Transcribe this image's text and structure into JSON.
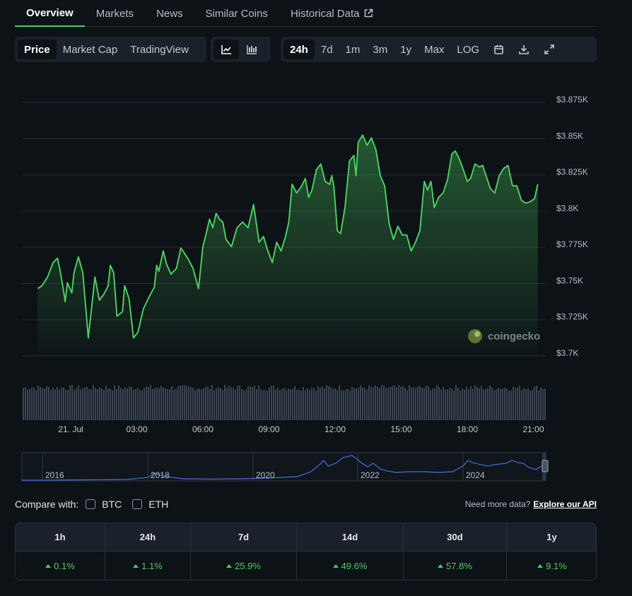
{
  "tabs": [
    {
      "label": "Overview",
      "active": true
    },
    {
      "label": "Markets"
    },
    {
      "label": "News"
    },
    {
      "label": "Similar Coins"
    },
    {
      "label": "Historical Data",
      "icon": "external-link-icon"
    }
  ],
  "toolbar": {
    "view": [
      "Price",
      "Market Cap",
      "TradingView"
    ],
    "view_active": "Price",
    "chart_types": [
      "line-chart-icon",
      "candlestick-icon"
    ],
    "ranges": [
      "24h",
      "7d",
      "1m",
      "3m",
      "1y",
      "Max",
      "LOG"
    ],
    "range_active": "24h",
    "actions": [
      "calendar-icon",
      "download-icon",
      "fullscreen-icon"
    ]
  },
  "colors": {
    "line": "#4bcc5f",
    "volume": "#3d4653",
    "navigator": "#3f63c9",
    "background": "#0d1217"
  },
  "watermark": "coingecko",
  "chart_data": {
    "type": "line",
    "x_ticks": [
      "21. Jul",
      "03:00",
      "06:00",
      "09:00",
      "12:00",
      "15:00",
      "18:00",
      "21:00"
    ],
    "y_ticks": [
      "$3.875K",
      "$3.85K",
      "$3.825K",
      "$3.8K",
      "$3.775K",
      "$3.75K",
      "$3.725K",
      "$3.7K"
    ],
    "ylim": [
      3700,
      3875
    ],
    "x_hours": [
      -1.5,
      -1.3,
      -1.05,
      -0.8,
      -0.6,
      -0.5,
      -0.35,
      -0.25,
      -0.15,
      0.05,
      0.15,
      0.35,
      0.55,
      0.8,
      1.0,
      1.1,
      1.3,
      1.5,
      1.7,
      1.8,
      1.95,
      2.1,
      2.35,
      2.45,
      2.65,
      2.85,
      3.05,
      3.3,
      3.55,
      3.8,
      3.9,
      4.0,
      4.2,
      4.35,
      4.55,
      4.8,
      5.0,
      5.1,
      5.35,
      5.55,
      5.8,
      6.0,
      6.15,
      6.3,
      6.45,
      6.6,
      6.75,
      6.9,
      7.05,
      7.3,
      7.55,
      7.8,
      8.05,
      8.3,
      8.55,
      8.75,
      8.95,
      9.15,
      9.35,
      9.55,
      9.75,
      9.9,
      10.05,
      10.25,
      10.45,
      10.65,
      10.8,
      10.95,
      11.15,
      11.35,
      11.55,
      11.75,
      11.85,
      11.95,
      12.1,
      12.25,
      12.45,
      12.65,
      12.85,
      12.95,
      13.05,
      13.25,
      13.45,
      13.65,
      13.85,
      14.05,
      14.25,
      14.45,
      14.65,
      14.85,
      15.05,
      15.25,
      15.45,
      15.65,
      15.85,
      16.05,
      16.2,
      16.35,
      16.5,
      16.7,
      16.9,
      17.1,
      17.3,
      17.45,
      17.6,
      17.8,
      18.0,
      18.15,
      18.35,
      18.55,
      18.7,
      18.85,
      19.05,
      19.25,
      19.45,
      19.65,
      19.85,
      20.05,
      20.25,
      20.45,
      20.65,
      20.85,
      21.05,
      21.2
    ],
    "y": [
      3744,
      3746,
      3752,
      3762,
      3765,
      3758,
      3745,
      3735,
      3748,
      3741,
      3755,
      3766,
      3755,
      3710,
      3738,
      3752,
      3736,
      3740,
      3746,
      3760,
      3755,
      3725,
      3728,
      3746,
      3737,
      3710,
      3714,
      3730,
      3738,
      3745,
      3760,
      3756,
      3770,
      3761,
      3754,
      3758,
      3772,
      3770,
      3764,
      3758,
      3744,
      3773,
      3782,
      3792,
      3786,
      3796,
      3792,
      3790,
      3778,
      3773,
      3786,
      3790,
      3786,
      3802,
      3776,
      3780,
      3770,
      3762,
      3776,
      3770,
      3780,
      3790,
      3816,
      3810,
      3814,
      3820,
      3807,
      3812,
      3826,
      3830,
      3818,
      3816,
      3822,
      3814,
      3784,
      3782,
      3800,
      3832,
      3836,
      3822,
      3845,
      3850,
      3843,
      3848,
      3840,
      3822,
      3815,
      3789,
      3778,
      3787,
      3781,
      3781,
      3770,
      3776,
      3784,
      3818,
      3812,
      3818,
      3800,
      3807,
      3810,
      3819,
      3837,
      3839,
      3835,
      3827,
      3818,
      3820,
      3830,
      3828,
      3829,
      3822,
      3813,
      3810,
      3822,
      3827,
      3829,
      3815,
      3815,
      3805,
      3803,
      3804,
      3806,
      3816
    ],
    "navigator_ticks": [
      "2016",
      "2018",
      "2020",
      "2022",
      "2024"
    ]
  },
  "compare": {
    "label": "Compare with:",
    "options": [
      "BTC",
      "ETH"
    ],
    "need_more": "Need more data?",
    "api_link": "Explore our API"
  },
  "performance": {
    "headers": [
      "1h",
      "24h",
      "7d",
      "14d",
      "30d",
      "1y"
    ],
    "values": [
      "0.1%",
      "1.1%",
      "25.9%",
      "49.6%",
      "57.8%",
      "9.1%"
    ]
  }
}
